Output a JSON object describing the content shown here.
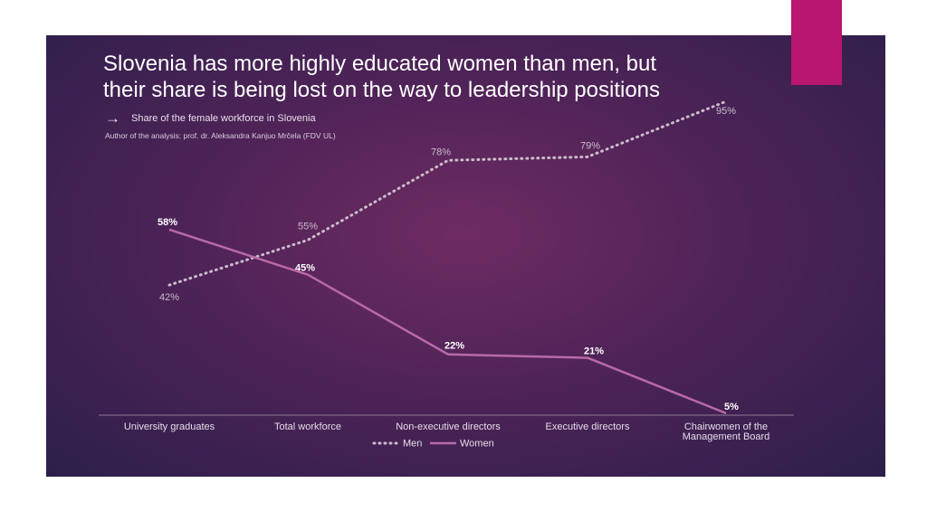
{
  "slide": {
    "title_line1": "Slovenia has more highly educated women than men, but",
    "title_line2": "their share is being lost on the way to leadership positions",
    "subtitle_icon": "arrow-right-icon",
    "subtitle": "Share of the female workforce in Slovenia",
    "author": "Author of the analysis: prof. dr. Aleksandra Kanjuo Mrčela (FDV UL)"
  },
  "colors": {
    "accent": "#b8166f",
    "men_series": "#cbbccb",
    "women_series": "#b86aa6"
  },
  "chart_data": {
    "type": "line",
    "categories": [
      [
        "University graduates"
      ],
      [
        "Total workforce"
      ],
      [
        "Non-executive directors"
      ],
      [
        "Executive directors"
      ],
      [
        "Chairwomen of the",
        "Management Board"
      ]
    ],
    "series": [
      {
        "name": "Men",
        "style": "dotted",
        "values": [
          42,
          55,
          78,
          79,
          95
        ],
        "labels": [
          "42%",
          "55%",
          "78%",
          "79%",
          "95%"
        ]
      },
      {
        "name": "Women",
        "style": "solid",
        "values": [
          58,
          45,
          22,
          21,
          5
        ],
        "labels": [
          "58%",
          "45%",
          "22%",
          "21%",
          "5%"
        ]
      }
    ],
    "legend": "bottom",
    "grid": false
  }
}
